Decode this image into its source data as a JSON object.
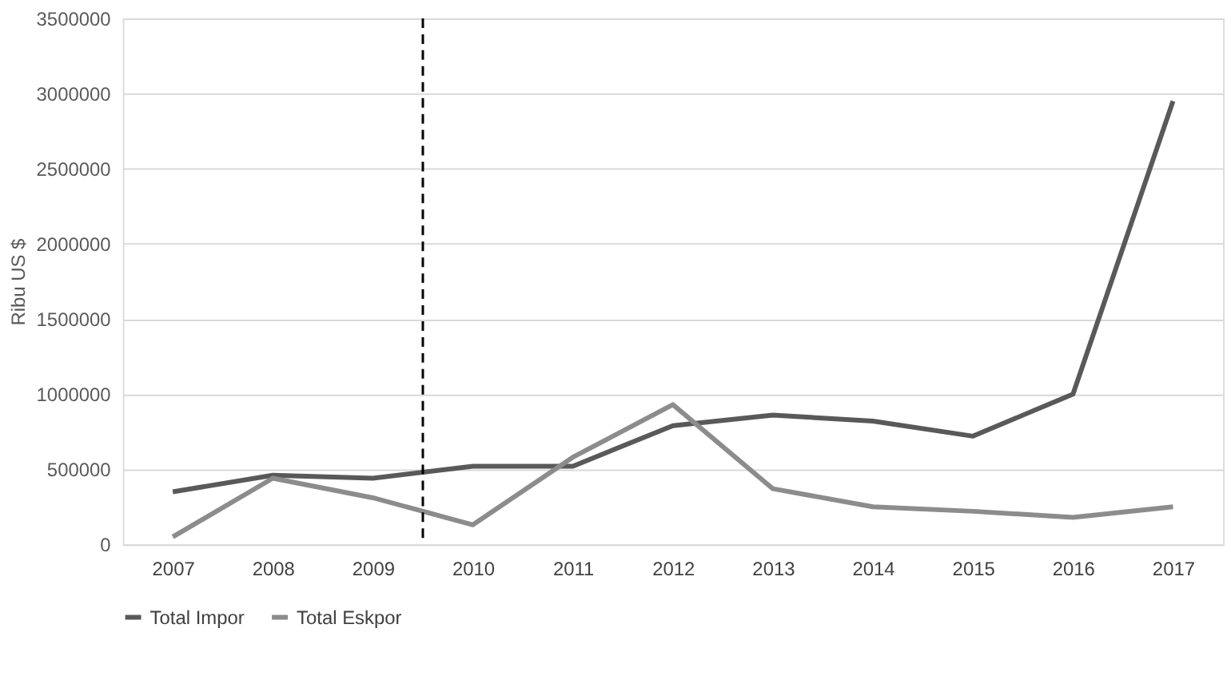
{
  "chart_data": {
    "type": "line",
    "ylabel": "Ribu US $",
    "x": [
      2007,
      2008,
      2009,
      2010,
      2011,
      2012,
      2013,
      2014,
      2015,
      2016,
      2017
    ],
    "xlim": [
      2006.5,
      2017.5
    ],
    "xticks": [
      2007,
      2008,
      2009,
      2010,
      2011,
      2012,
      2013,
      2014,
      2015,
      2016,
      2017
    ],
    "ylim": [
      0,
      3500000
    ],
    "yticks": [
      0,
      500000,
      1000000,
      1500000,
      2000000,
      2500000,
      3000000,
      3500000
    ],
    "series": [
      {
        "name": "Total Impor",
        "color": "#595959",
        "values": [
          350000,
          460000,
          440000,
          520000,
          520000,
          790000,
          860000,
          820000,
          720000,
          1000000,
          2950000
        ]
      },
      {
        "name": "Total Eskpor",
        "color": "#8c8c8c",
        "values": [
          50000,
          440000,
          310000,
          130000,
          580000,
          930000,
          370000,
          250000,
          220000,
          180000,
          250000
        ]
      }
    ],
    "ref_lines": [
      {
        "axis": "x",
        "value": 2009.5,
        "color": "#000000",
        "line_style": "dashed"
      }
    ],
    "grid": "y",
    "legend": "bottom",
    "marker": "none",
    "line_style": "solid"
  }
}
